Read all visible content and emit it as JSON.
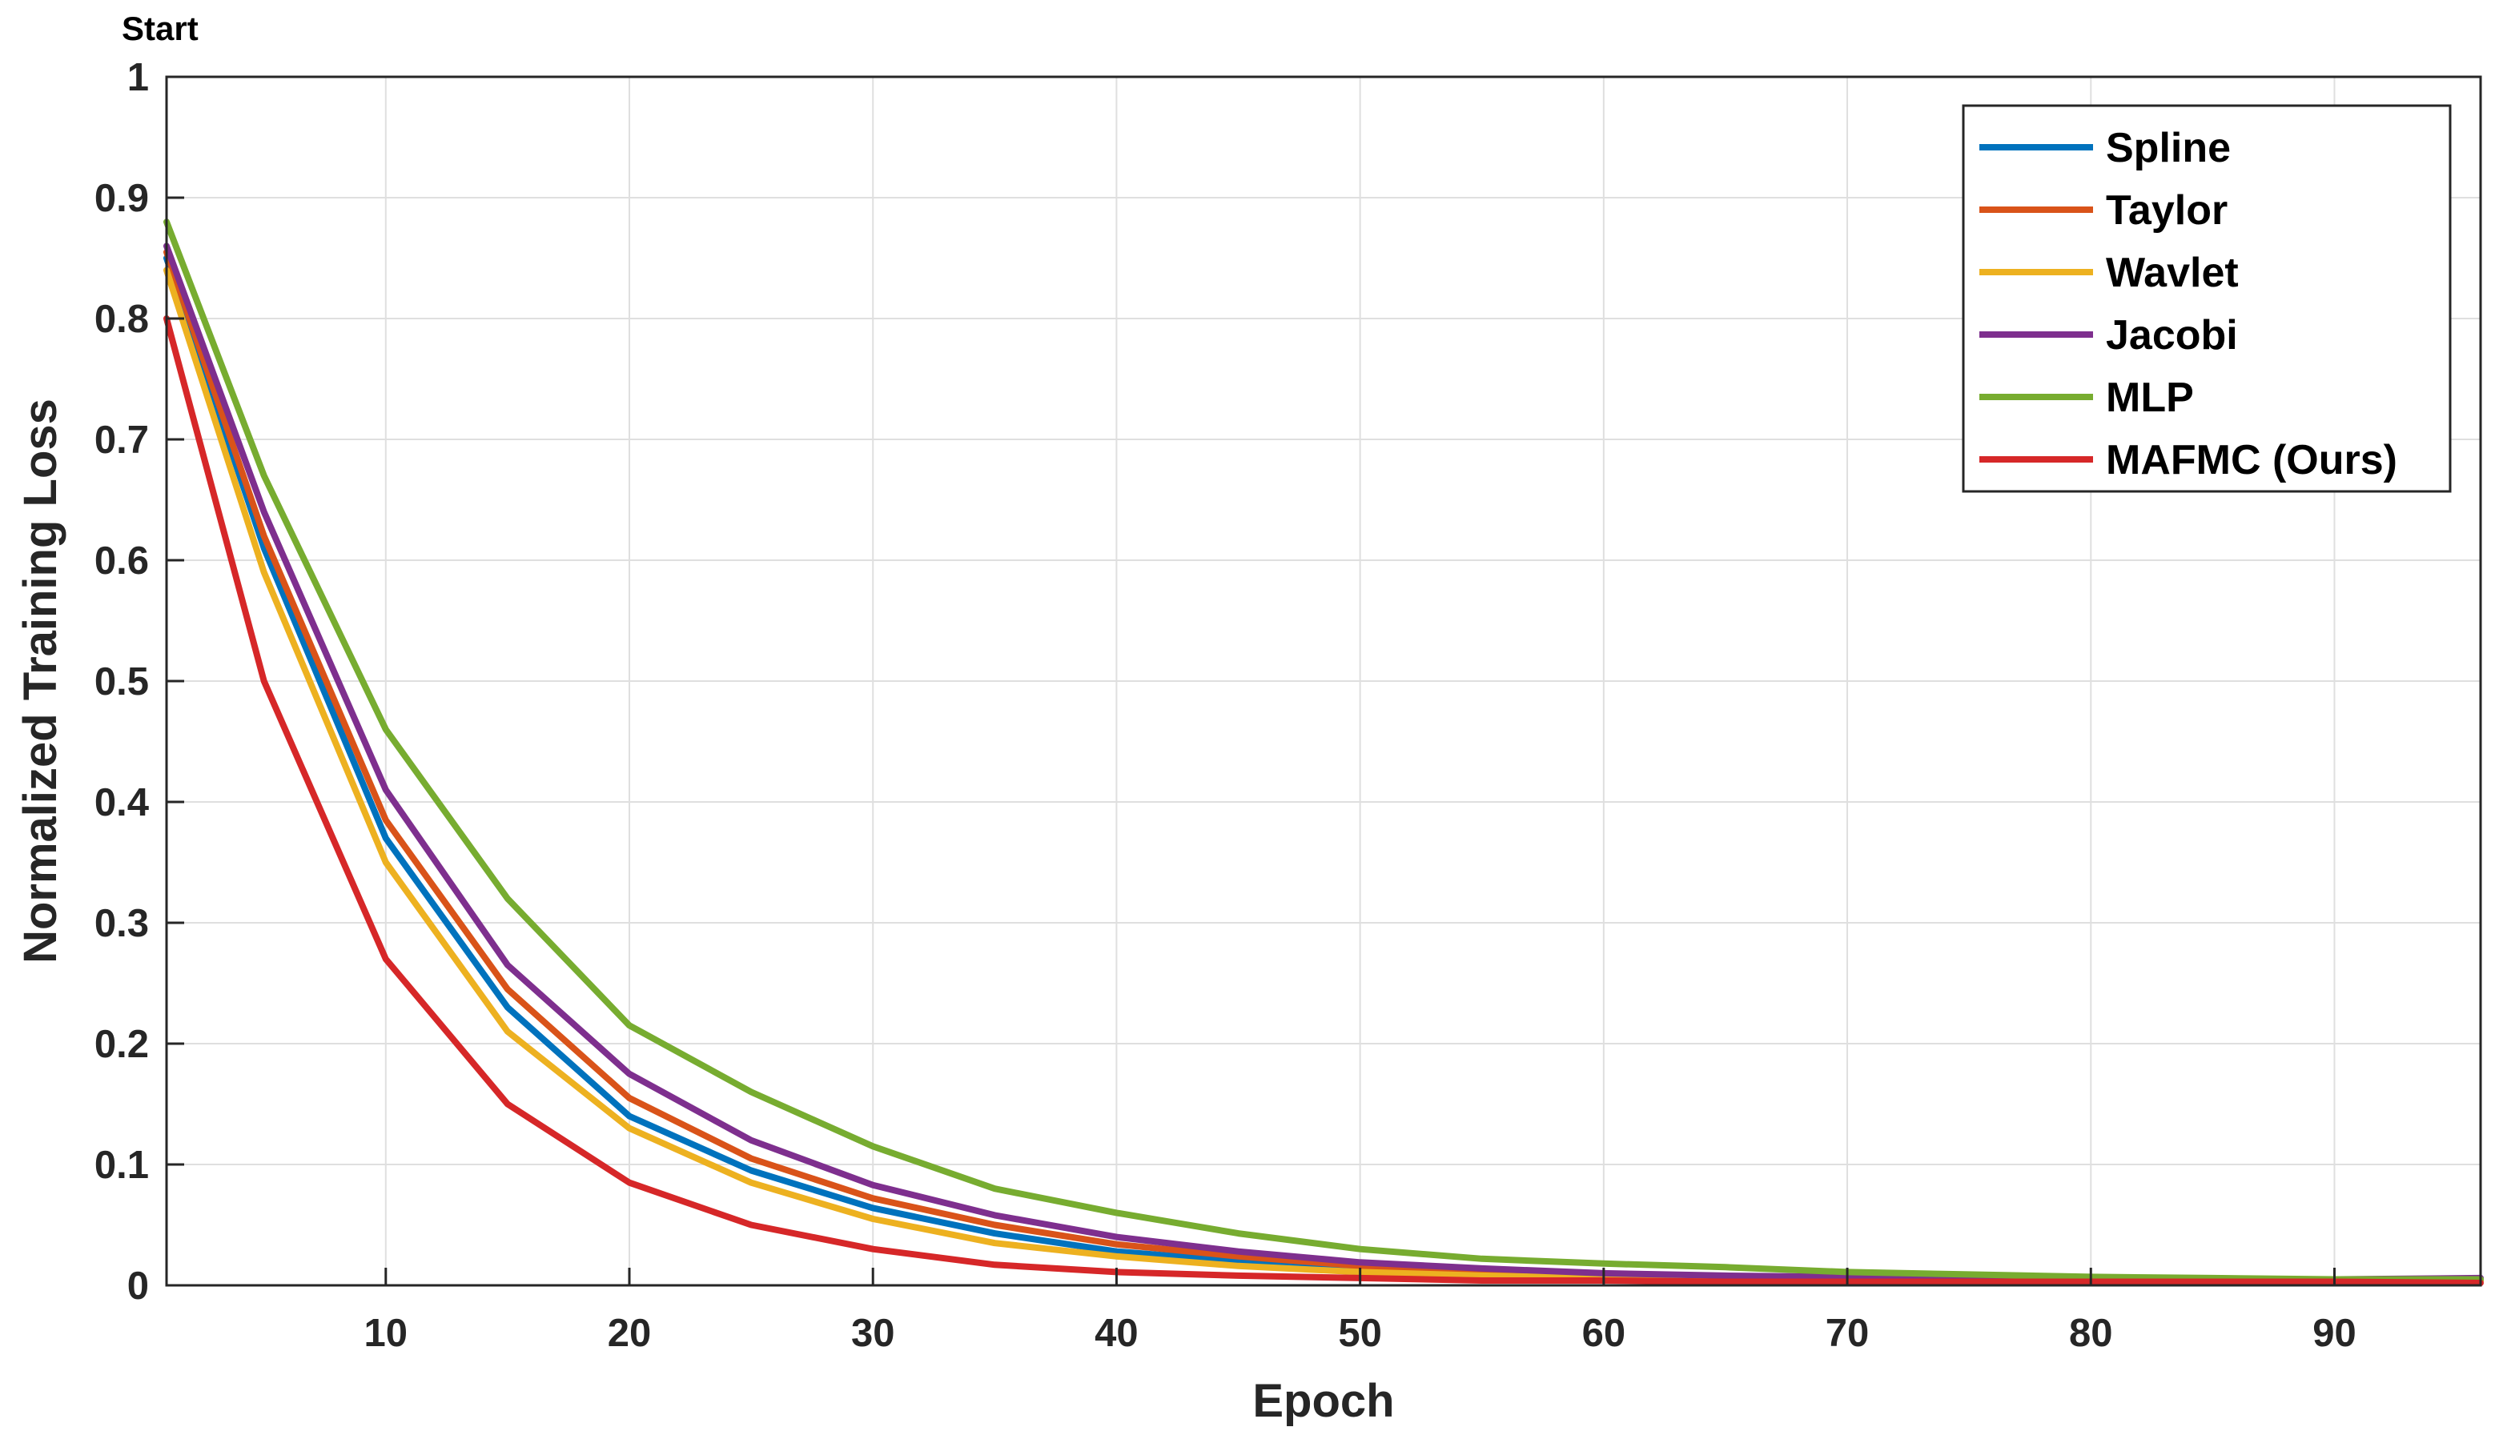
{
  "chart_data": {
    "type": "line",
    "corner_label": "Start",
    "xlabel": "Epoch",
    "ylabel": "Normalized Training Loss",
    "xlim": [
      1,
      96
    ],
    "ylim": [
      0,
      1
    ],
    "xticks": [
      10,
      20,
      30,
      40,
      50,
      60,
      70,
      80,
      90
    ],
    "yticks": [
      0,
      0.1,
      0.2,
      0.3,
      0.4,
      0.5,
      0.6,
      0.7,
      0.8,
      0.9,
      1
    ],
    "ytick_labels": [
      "0",
      "0.1",
      "0.2",
      "0.3",
      "0.4",
      "0.5",
      "0.6",
      "0.7",
      "0.8",
      "0.9",
      "1"
    ],
    "grid": true,
    "legend_position": "top-right",
    "x": [
      1,
      5,
      10,
      15,
      20,
      25,
      30,
      35,
      40,
      45,
      50,
      55,
      60,
      65,
      70,
      75,
      80,
      85,
      90,
      96
    ],
    "series": [
      {
        "name": "Spline",
        "color": "#0072BD",
        "values": [
          0.85,
          0.61,
          0.37,
          0.23,
          0.14,
          0.095,
          0.064,
          0.043,
          0.028,
          0.02,
          0.013,
          0.009,
          0.007,
          0.006,
          0.005,
          0.005,
          0.004,
          0.004,
          0.004,
          0.004
        ]
      },
      {
        "name": "Taylor",
        "color": "#D95319",
        "values": [
          0.855,
          0.62,
          0.385,
          0.245,
          0.155,
          0.105,
          0.072,
          0.05,
          0.034,
          0.024,
          0.016,
          0.011,
          0.008,
          0.007,
          0.006,
          0.005,
          0.005,
          0.004,
          0.004,
          0.004
        ]
      },
      {
        "name": "Wavlet",
        "color": "#EDB120",
        "values": [
          0.84,
          0.59,
          0.35,
          0.21,
          0.13,
          0.085,
          0.055,
          0.035,
          0.024,
          0.016,
          0.011,
          0.008,
          0.006,
          0.005,
          0.005,
          0.004,
          0.004,
          0.004,
          0.004,
          0.004
        ]
      },
      {
        "name": "Jacobi",
        "color": "#7E2F8E",
        "values": [
          0.86,
          0.64,
          0.41,
          0.265,
          0.175,
          0.12,
          0.083,
          0.058,
          0.04,
          0.028,
          0.019,
          0.014,
          0.01,
          0.008,
          0.007,
          0.006,
          0.005,
          0.005,
          0.005,
          0.006
        ]
      },
      {
        "name": "MLP",
        "color": "#77AC30",
        "values": [
          0.88,
          0.67,
          0.46,
          0.32,
          0.215,
          0.16,
          0.115,
          0.08,
          0.06,
          0.043,
          0.03,
          0.022,
          0.018,
          0.015,
          0.011,
          0.009,
          0.007,
          0.006,
          0.005,
          0.005
        ]
      },
      {
        "name": "MAFMC (Ours)",
        "color": "#D62728",
        "values": [
          0.8,
          0.5,
          0.27,
          0.15,
          0.085,
          0.05,
          0.03,
          0.017,
          0.011,
          0.008,
          0.006,
          0.004,
          0.004,
          0.003,
          0.003,
          0.003,
          0.003,
          0.003,
          0.003,
          0.002
        ]
      }
    ]
  }
}
